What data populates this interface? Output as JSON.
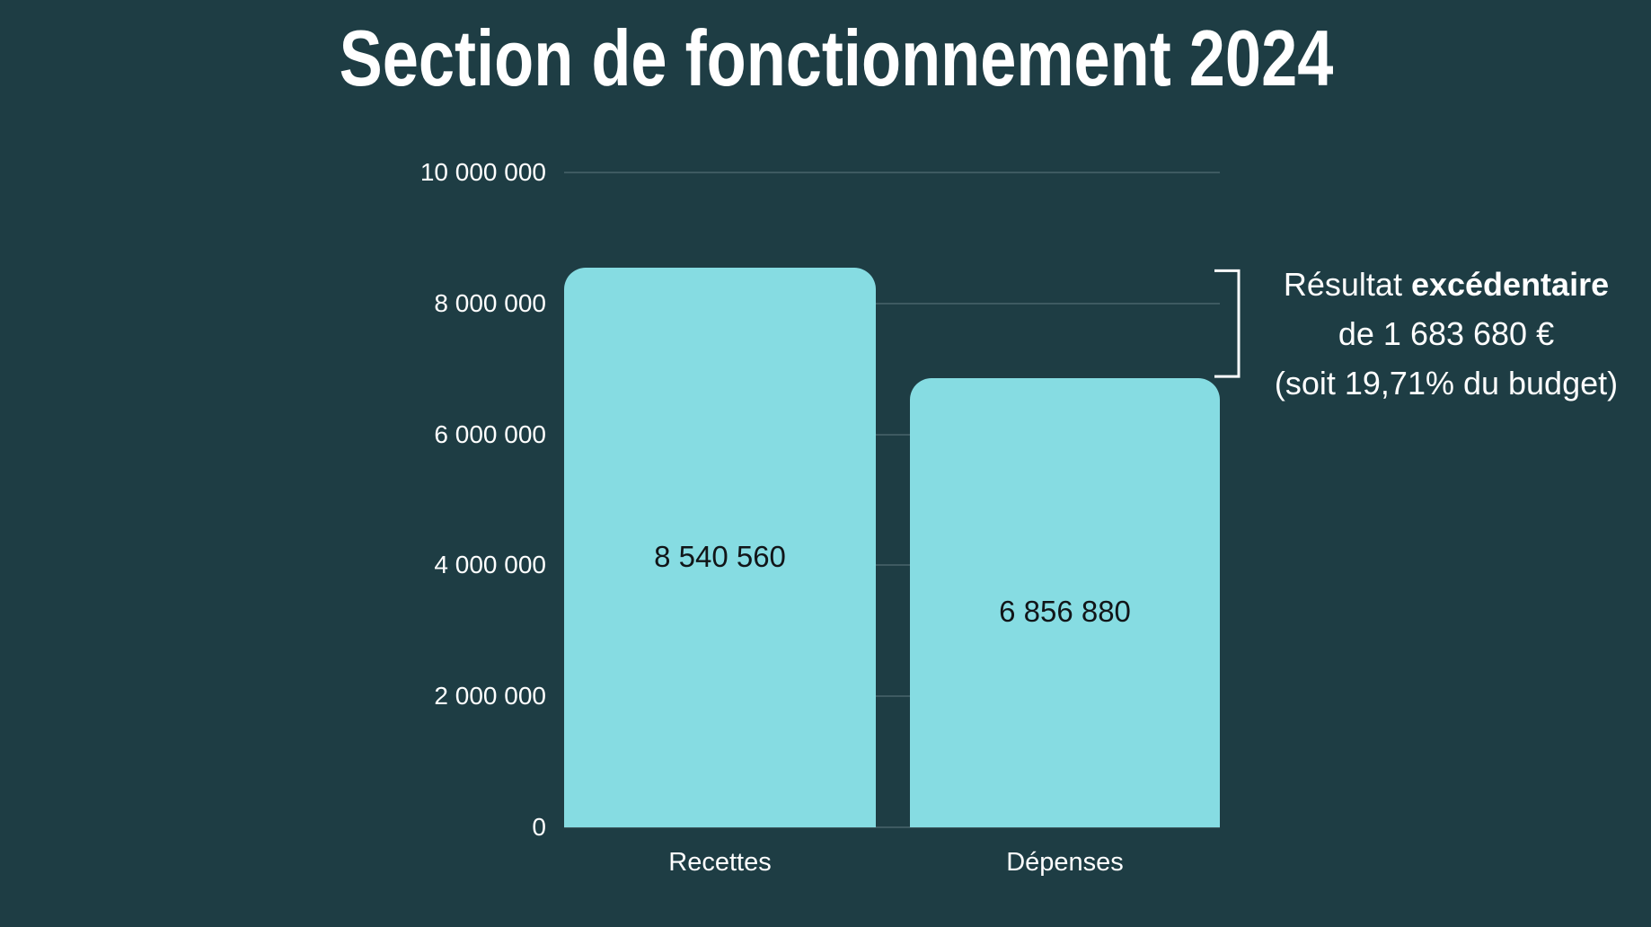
{
  "chart_data": {
    "type": "bar",
    "title": "Section de fonctionnement 2024",
    "categories": [
      "Recettes",
      "Dépenses"
    ],
    "values": [
      8540560,
      6856880
    ],
    "value_labels": [
      "8 540 560",
      "6 856 880"
    ],
    "y_ticks": [
      "10 000 000",
      "8 000 000",
      "6 000 000",
      "4 000 000",
      "2 000 000",
      "0"
    ],
    "y_tick_values": [
      10000000,
      8000000,
      6000000,
      4000000,
      2000000,
      0
    ],
    "ylim": [
      0,
      10000000
    ],
    "grid": true,
    "legend": "none",
    "annotation": {
      "line1_normal": "Résultat ",
      "line1_bold": "excédentaire",
      "line2": "de 1 683 680 €",
      "line3": "(soit 19,71% du budget)"
    },
    "colors": {
      "background": "#1e3d44",
      "bar": "#86dce2",
      "gridline": "#3e5a61",
      "text_light": "#ffffff",
      "text_dark": "#111518"
    }
  }
}
